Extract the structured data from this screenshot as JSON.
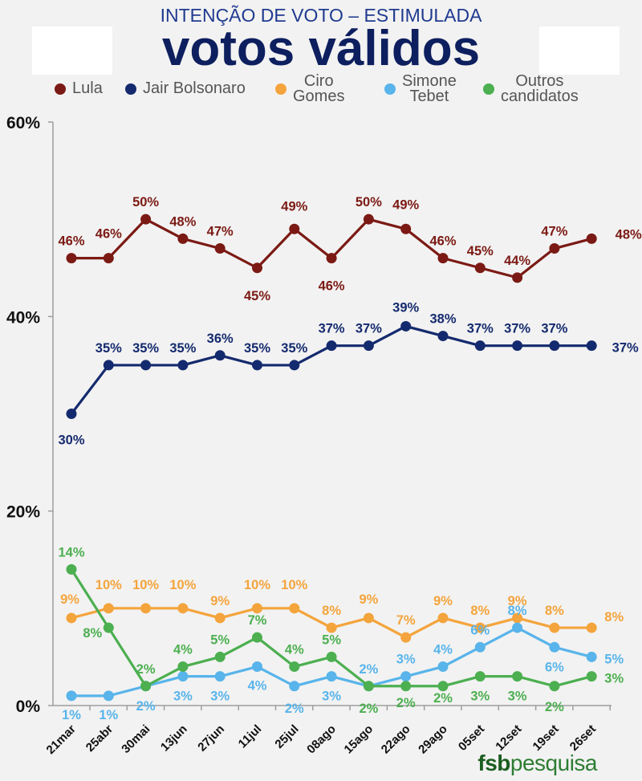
{
  "header": {
    "title": "INTENÇÃO DE VOTO – ESTIMULADA",
    "subtitle": "votos válidos"
  },
  "legend": {
    "items": [
      {
        "label": "Lula",
        "color": "#7b1a14"
      },
      {
        "label": "Jair Bolsonaro",
        "color": "#142a6e"
      },
      {
        "label": "Ciro\nGomes",
        "color": "#f4a43c"
      },
      {
        "label": "Simone\nTebet",
        "color": "#58b4ea"
      },
      {
        "label": "Outros\ncandidatos",
        "color": "#4caf50"
      }
    ]
  },
  "brand": {
    "part1": "fsb",
    "part2": "pesquisa"
  },
  "chart_data": {
    "type": "line",
    "categories": [
      "21mar",
      "25abr",
      "30mai",
      "13jun",
      "27jun",
      "11jul",
      "25jul",
      "08ago",
      "15ago",
      "22ago",
      "29ago",
      "05set",
      "12set",
      "19set",
      "26set"
    ],
    "ylim": [
      0,
      60
    ],
    "yticks": [
      0,
      20,
      40,
      60
    ],
    "ytick_labels": [
      "0%",
      "20%",
      "40%",
      "60%"
    ],
    "grid": false,
    "legend_position": "top",
    "series": [
      {
        "name": "Lula",
        "color": "#7b1a14",
        "values": [
          46,
          46,
          50,
          48,
          47,
          45,
          49,
          46,
          50,
          49,
          46,
          45,
          44,
          47,
          48
        ],
        "labels": [
          "46%",
          "46%",
          "50%",
          "48%",
          "47%",
          "45%",
          "49%",
          "46%",
          "50%",
          "49%",
          "46%",
          "45%",
          "44%",
          "47%",
          "48%"
        ]
      },
      {
        "name": "Jair Bolsonaro",
        "color": "#142a6e",
        "values": [
          30,
          35,
          35,
          35,
          36,
          35,
          35,
          37,
          37,
          39,
          38,
          37,
          37,
          37,
          37
        ],
        "labels": [
          "30%",
          "35%",
          "35%",
          "35%",
          "36%",
          "35%",
          "35%",
          "37%",
          "37%",
          "39%",
          "38%",
          "37%",
          "37%",
          "37%",
          "37%"
        ]
      },
      {
        "name": "Ciro Gomes",
        "color": "#f4a43c",
        "values": [
          9,
          10,
          10,
          10,
          9,
          10,
          10,
          8,
          9,
          7,
          9,
          8,
          9,
          8,
          8
        ],
        "labels": [
          "9%",
          "10%",
          "10%",
          "10%",
          "9%",
          "10%",
          "10%",
          "8%",
          "9%",
          "7%",
          "9%",
          "8%",
          "9%",
          "8%",
          "8%"
        ]
      },
      {
        "name": "Simone Tebet",
        "color": "#58b4ea",
        "values": [
          1,
          1,
          2,
          3,
          3,
          4,
          2,
          3,
          2,
          3,
          4,
          6,
          8,
          6,
          5
        ],
        "labels": [
          "1%",
          "1%",
          "2%",
          "3%",
          "3%",
          "4%",
          "2%",
          "3%",
          "2%",
          "3%",
          "4%",
          "6%",
          "8%",
          "6%",
          "5%"
        ]
      },
      {
        "name": "Outros candidatos",
        "color": "#4caf50",
        "values": [
          14,
          8,
          2,
          4,
          5,
          7,
          4,
          5,
          2,
          2,
          2,
          3,
          3,
          2,
          3
        ],
        "labels": [
          "14%",
          "8%",
          "2%",
          "4%",
          "5%",
          "7%",
          "4%",
          "5%",
          "2%",
          "2%",
          "2%",
          "3%",
          "3%",
          "2%",
          "3%"
        ]
      }
    ]
  }
}
